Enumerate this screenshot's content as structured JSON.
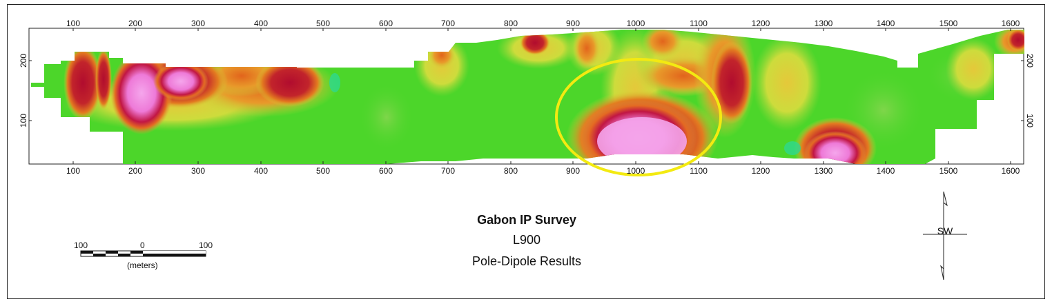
{
  "title": "Gabon IP Survey",
  "line": "L900",
  "subtitle": "Pole-Dipole Results",
  "x_ticks": [
    "100",
    "200",
    "300",
    "400",
    "500",
    "600",
    "700",
    "800",
    "900",
    "1000",
    "1100",
    "1200",
    "1300",
    "1400",
    "1500",
    "1600"
  ],
  "y_ticks": [
    "200",
    "100"
  ],
  "scale_bar": {
    "left": "100",
    "mid": "0",
    "right": "100",
    "units": "(meters)"
  },
  "north_arrow": {
    "label": "SW"
  },
  "colors": {
    "background": "#4cd62a",
    "high": "#f49be4",
    "mid": "#c0123a",
    "orange": "#e8801e",
    "yellow": "#d8d83a",
    "highlight": "#f3ea11"
  }
}
